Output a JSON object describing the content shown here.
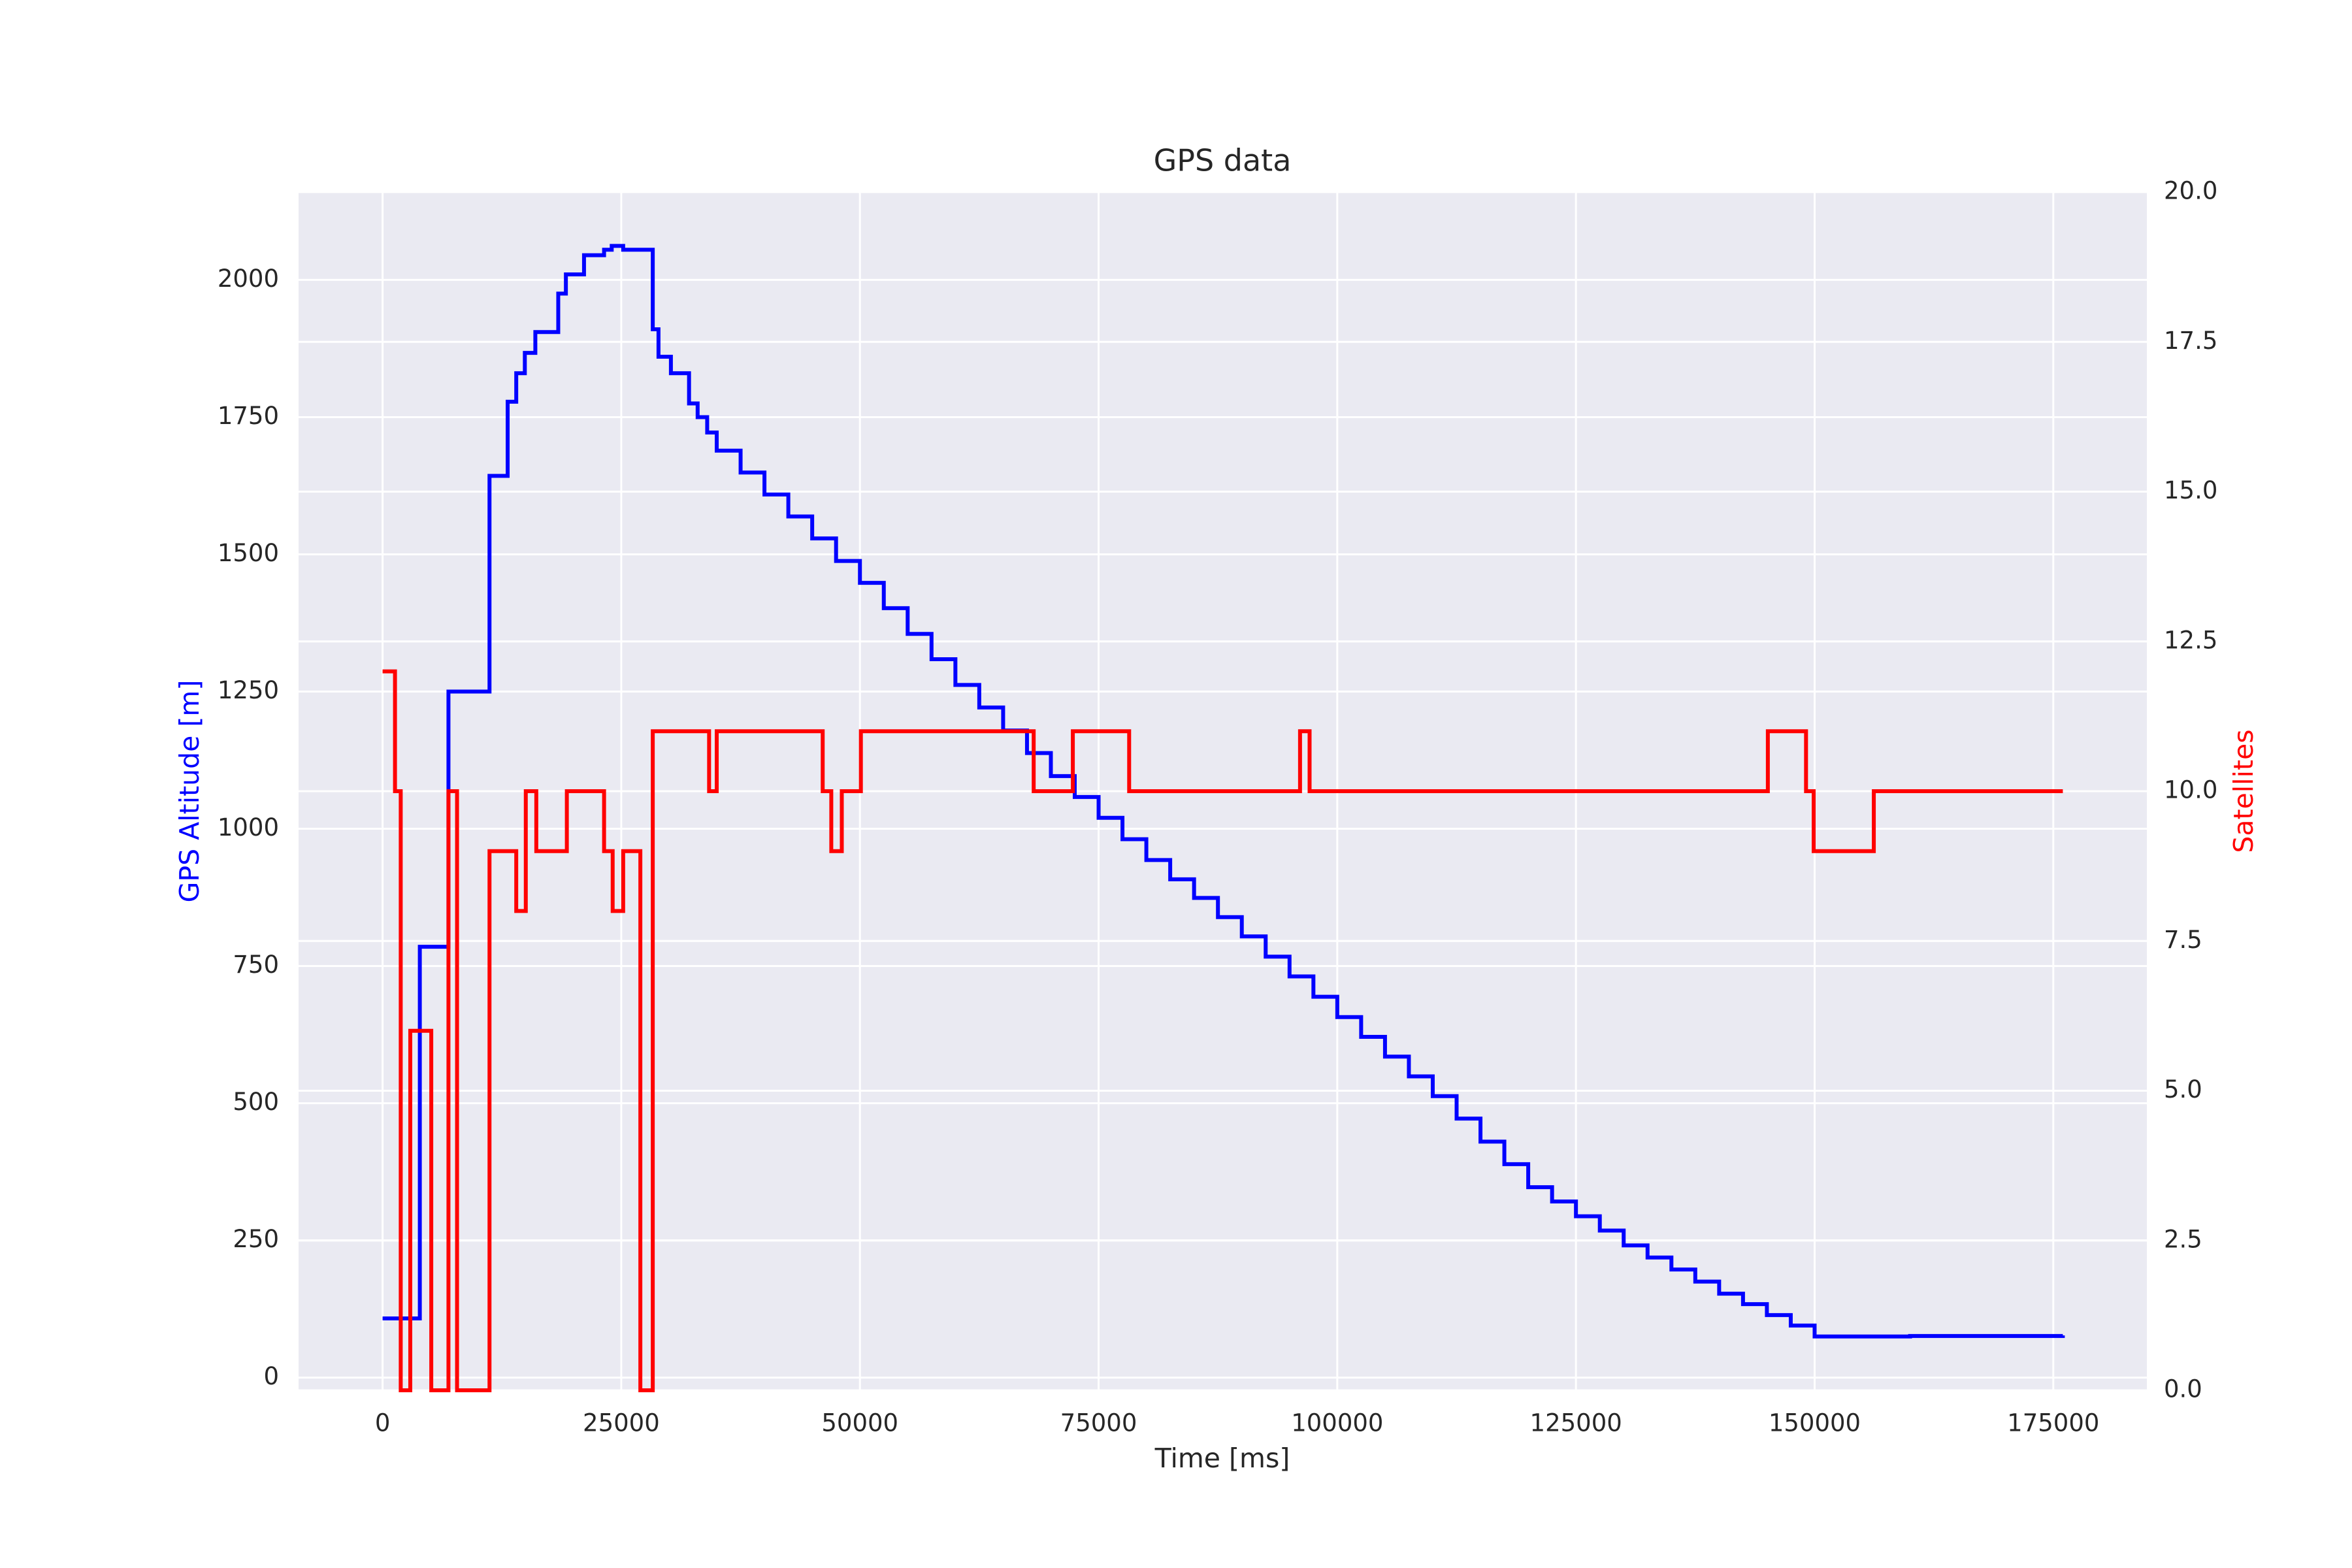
{
  "chart_data": {
    "type": "line",
    "drawstyle": "steps-post",
    "title": "GPS data",
    "xlabel": "Time [ms]",
    "ylabel": "GPS Altitude [m]",
    "y2label": "Satellites",
    "xlim": [
      -8800,
      184800
    ],
    "xticks": [
      0,
      25000,
      50000,
      75000,
      100000,
      125000,
      150000,
      175000
    ],
    "ylim": [
      -23,
      2160
    ],
    "yticks": [
      0,
      250,
      500,
      750,
      1000,
      1250,
      1500,
      1750,
      2000
    ],
    "y2lim": [
      0,
      20
    ],
    "y2ticks": [
      {
        "value": 0,
        "label": "0.0"
      },
      {
        "value": 2.5,
        "label": "2.5"
      },
      {
        "value": 5,
        "label": "5.0"
      },
      {
        "value": 7.5,
        "label": "7.5"
      },
      {
        "value": 10,
        "label": "10.0"
      },
      {
        "value": 12.5,
        "label": "12.5"
      },
      {
        "value": 15,
        "label": "15.0"
      },
      {
        "value": 17.5,
        "label": "17.5"
      },
      {
        "value": 20,
        "label": "20.0"
      }
    ],
    "grid": true,
    "series": [
      {
        "color": "#0000ff",
        "x": [
          0,
          3900,
          6900,
          11200,
          13100,
          14000,
          14900,
          16000,
          18400,
          19200,
          21100,
          23200,
          24000,
          25200,
          28300,
          28900,
          30200,
          32100,
          33000,
          34000,
          35000,
          37500,
          40000,
          42500,
          45000,
          47500,
          50000,
          52500,
          55000,
          57500,
          60000,
          62500,
          65000,
          67500,
          70000,
          72500,
          75000,
          77500,
          80000,
          82500,
          85000,
          87500,
          90000,
          92500,
          95000,
          97500,
          100000,
          102500,
          105000,
          107500,
          110000,
          112500,
          115000,
          117500,
          120000,
          122500,
          125000,
          127500,
          130000,
          132500,
          135000,
          137500,
          140000,
          142500,
          145000,
          147500,
          150000,
          160000,
          176000
        ],
        "values": [
          108,
          785,
          1250,
          1643,
          1778,
          1830,
          1867,
          1905,
          1975,
          2010,
          2045,
          2055,
          2062,
          2055,
          1910,
          1860,
          1830,
          1775,
          1750,
          1722,
          1689,
          1649,
          1609,
          1569,
          1529,
          1488,
          1448,
          1402,
          1355,
          1309,
          1262,
          1221,
          1179,
          1138,
          1096,
          1058,
          1020,
          981,
          943,
          908,
          874,
          839,
          804,
          767,
          731,
          694,
          657,
          621,
          585,
          549,
          513,
          472,
          430,
          389,
          347,
          321,
          294,
          268,
          241,
          219,
          197,
          175,
          153,
          134,
          114,
          95,
          75,
          76,
          77
        ]
      },
      {
        "color": "#ff0000",
        "axis": "y2",
        "x": [
          0,
          1300,
          1900,
          2900,
          5100,
          6900,
          7800,
          11200,
          14000,
          15000,
          16100,
          19300,
          23200,
          24100,
          25200,
          27000,
          28300,
          34200,
          35000,
          46100,
          47000,
          48100,
          50100,
          68200,
          72300,
          78200,
          96100,
          97100,
          145100,
          149100,
          149900,
          156200,
          176000
        ],
        "values": [
          12,
          10,
          0,
          6,
          0,
          10,
          0,
          9,
          8,
          10,
          9,
          10,
          9,
          8,
          9,
          0,
          11,
          10,
          11,
          10,
          9,
          10,
          11,
          10,
          11,
          10,
          11,
          10,
          11,
          10,
          9,
          10,
          10
        ]
      }
    ]
  }
}
